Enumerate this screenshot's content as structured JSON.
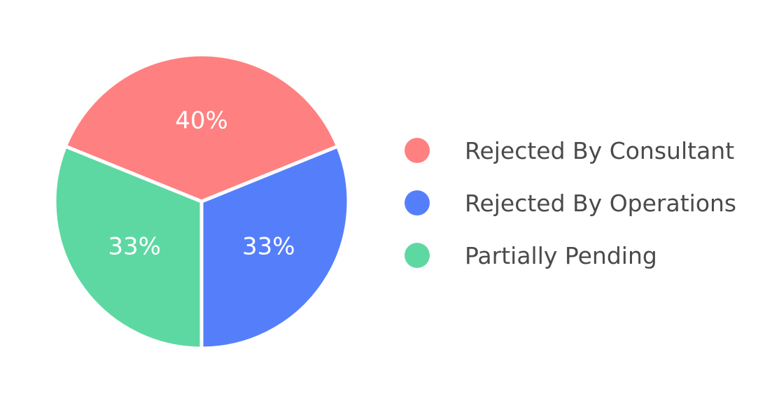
{
  "chart_data": {
    "type": "pie",
    "title": "",
    "slices": [
      {
        "label": "Rejected By Consultant",
        "value": 40,
        "display": "40%",
        "color": "#ff8080"
      },
      {
        "label": "Rejected By Operations",
        "value": 33,
        "display": "33%",
        "color": "#557ffa"
      },
      {
        "label": "Partially Pending",
        "value": 33,
        "display": "33%",
        "color": "#5ed8a2"
      }
    ],
    "legend_position": "right"
  }
}
